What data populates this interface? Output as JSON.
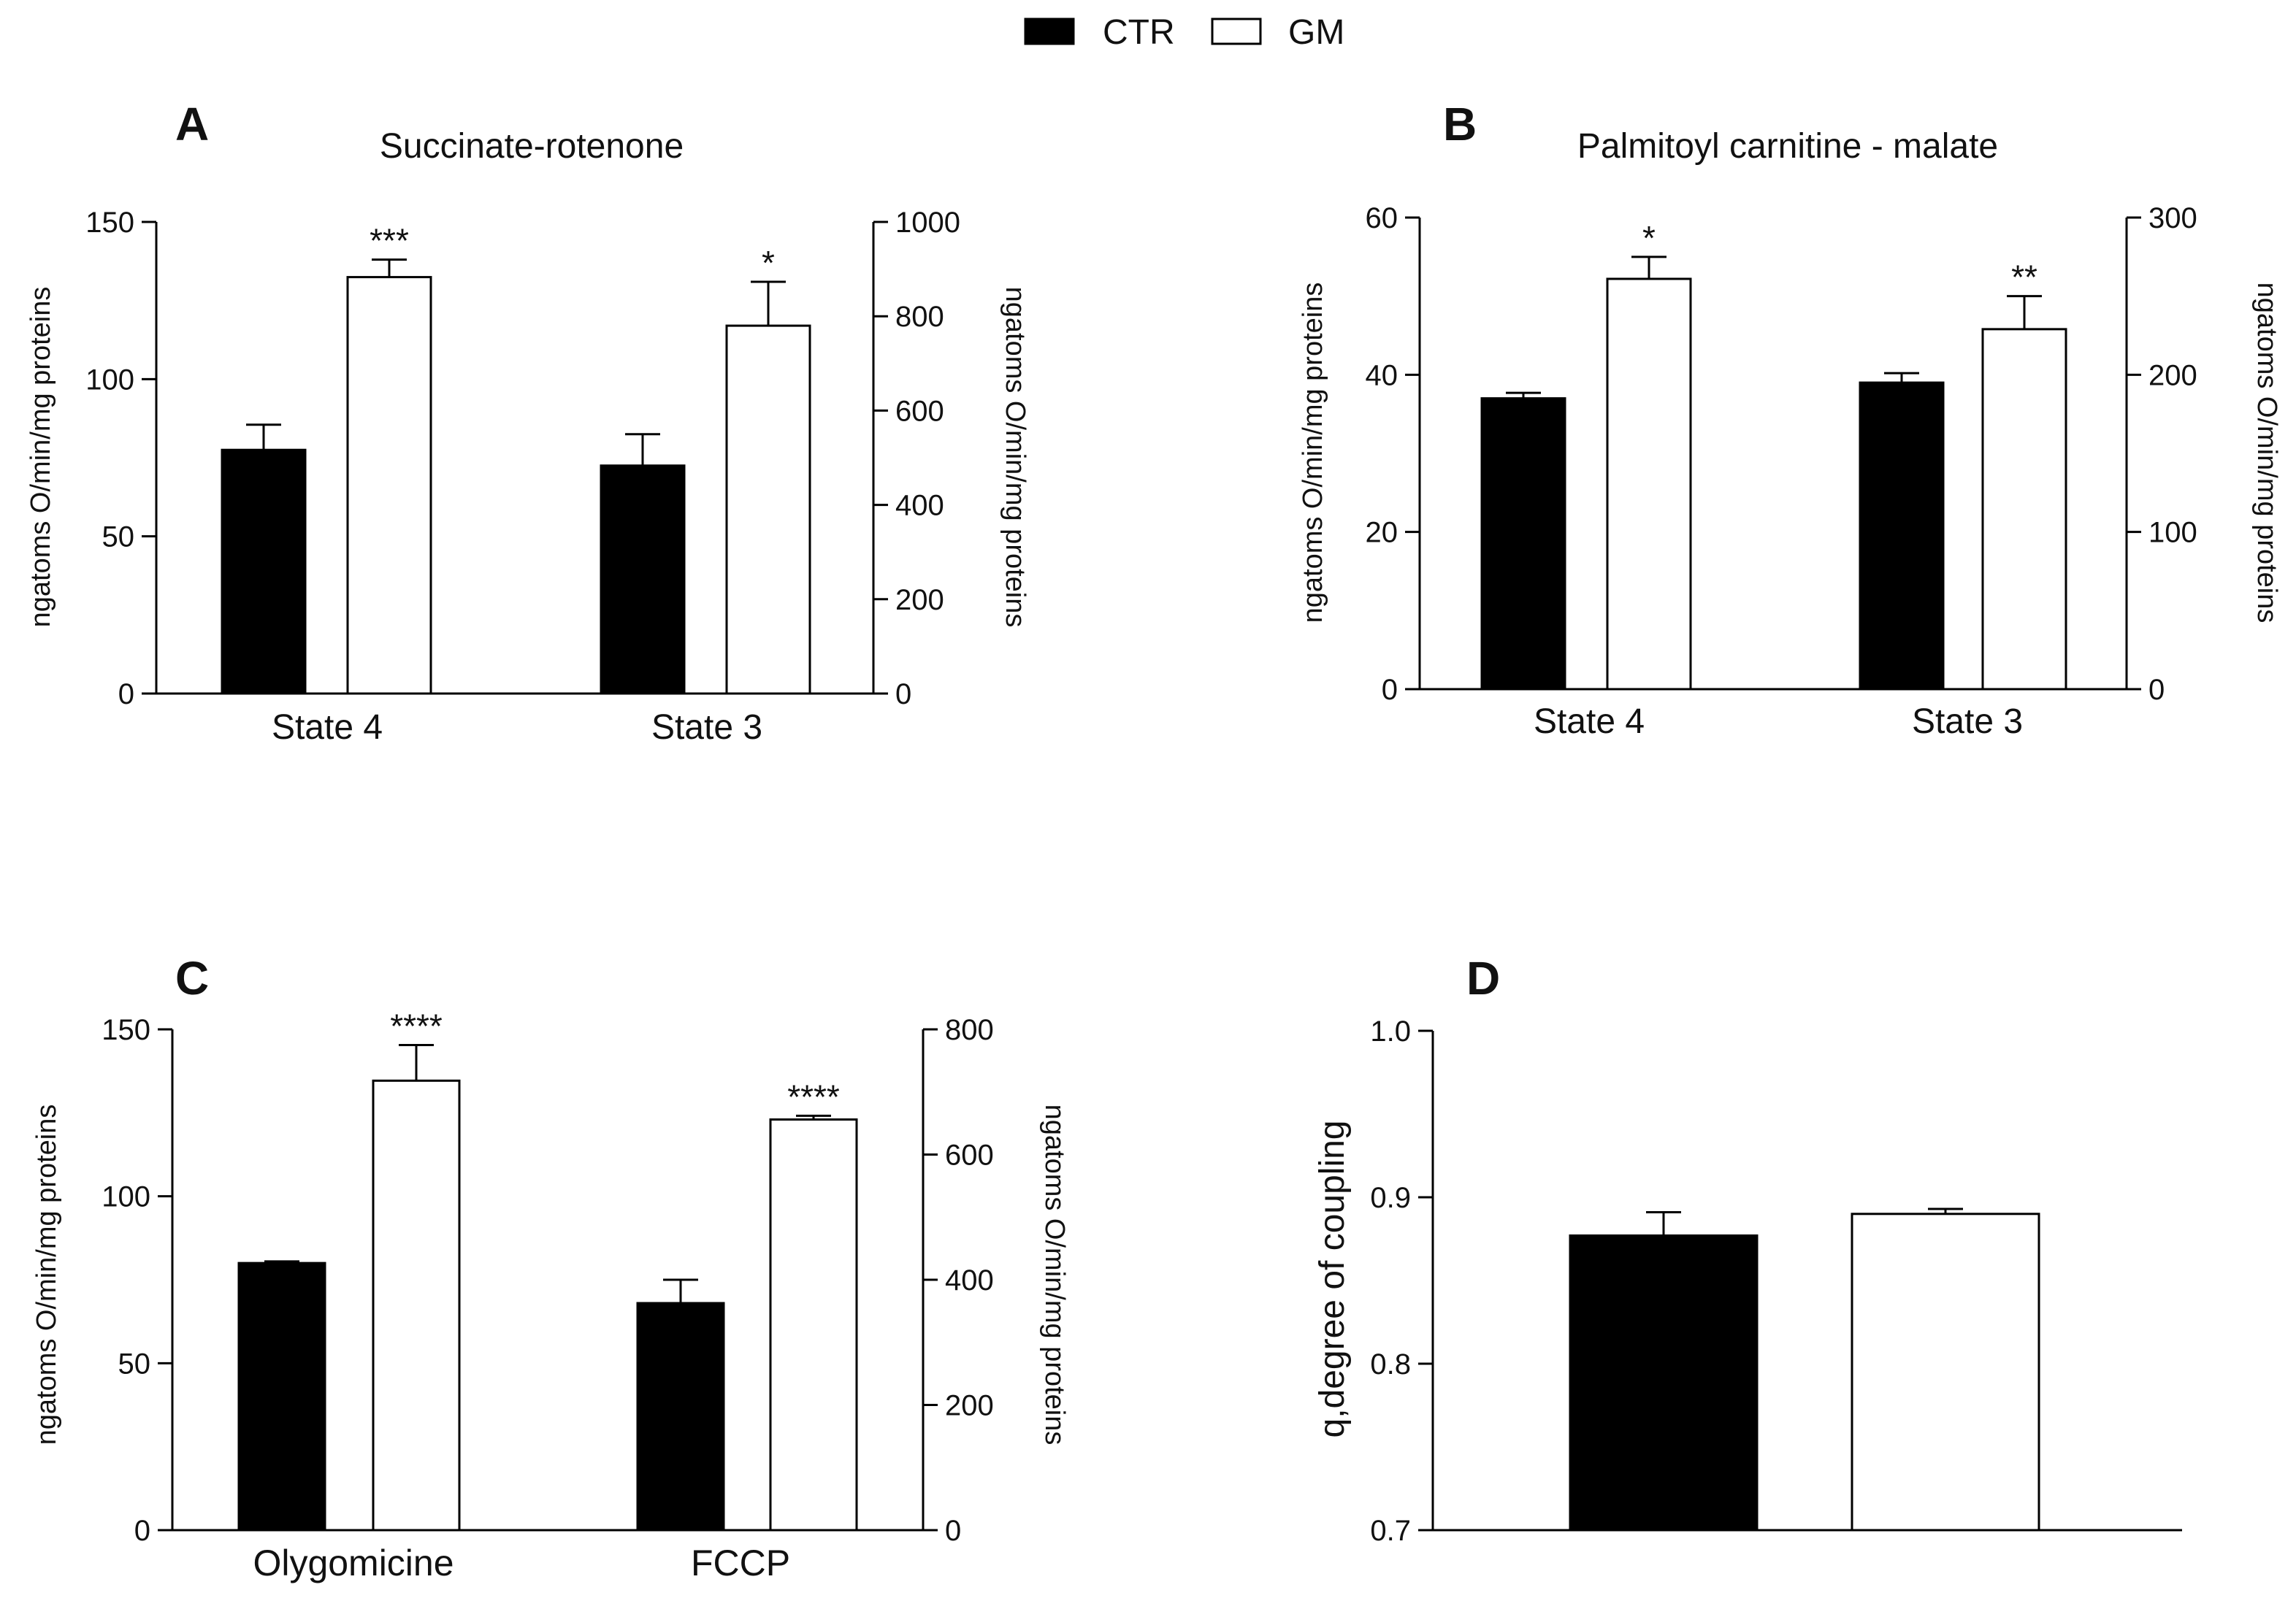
{
  "legend": {
    "entries": [
      {
        "label": "CTR",
        "color": "#000000"
      },
      {
        "label": "GM",
        "color": "#ffffff"
      }
    ]
  },
  "chart_data": [
    {
      "type": "bar",
      "panel": "A",
      "title": "Succinate-rotenone",
      "categories": [
        "State 4",
        "State 3"
      ],
      "ylabel": "ngatoms O/min/mg proteins",
      "y2label": "ngatoms O/min/mg proteins",
      "ylim": [
        0,
        150
      ],
      "yticks": [
        0,
        50,
        100,
        150
      ],
      "y2lim": [
        0,
        1000
      ],
      "y2ticks": [
        0,
        200,
        400,
        600,
        800,
        1000
      ],
      "series": [
        {
          "name": "CTR",
          "axis": "left",
          "values": [
            77.5,
            72.5
          ],
          "errors": [
            8,
            10
          ],
          "signif": [
            "",
            ""
          ]
        },
        {
          "name": "GM",
          "axis": "right",
          "values": [
            883,
            780
          ],
          "errors": [
            37,
            93
          ],
          "signif": [
            "***",
            "*"
          ]
        }
      ]
    },
    {
      "type": "bar",
      "panel": "B",
      "title": "Palmitoyl carnitine - malate",
      "categories": [
        "State 4",
        "State 3"
      ],
      "ylabel": "ngatoms O/min/mg proteins",
      "y2label": "ngatoms O/min/mg proteins",
      "ylim": [
        0,
        60
      ],
      "yticks": [
        0,
        20,
        40,
        60
      ],
      "y2lim": [
        0,
        300
      ],
      "y2ticks": [
        0,
        100,
        200,
        300
      ],
      "series": [
        {
          "name": "CTR",
          "axis": "left",
          "values": [
            37,
            39
          ],
          "errors": [
            0.7,
            1.2
          ],
          "signif": [
            "",
            ""
          ]
        },
        {
          "name": "GM",
          "axis": "right",
          "values": [
            261,
            229
          ],
          "errors": [
            14,
            21
          ],
          "signif": [
            "*",
            "**"
          ]
        }
      ]
    },
    {
      "type": "bar",
      "panel": "C",
      "title": "",
      "categories": [
        "Olygomicine",
        "FCCP"
      ],
      "ylabel": "ngatoms O/min/mg proteins",
      "y2label": "ngatoms O/min/mg proteins",
      "ylim": [
        0,
        150
      ],
      "yticks": [
        0,
        50,
        100,
        150
      ],
      "y2lim": [
        0,
        800
      ],
      "y2ticks": [
        0,
        200,
        400,
        600,
        800
      ],
      "series": [
        {
          "name": "CTR",
          "axis": "left",
          "values": [
            80,
            68
          ],
          "errors": [
            0.5,
            7
          ],
          "signif": [
            "",
            ""
          ]
        },
        {
          "name": "GM",
          "axis": "right",
          "values": [
            718,
            656
          ],
          "errors": [
            57,
            6
          ],
          "signif": [
            "****",
            "****"
          ]
        }
      ]
    },
    {
      "type": "bar",
      "panel": "D",
      "title": "",
      "categories": [
        ""
      ],
      "ylabel": "q,degree of coupling",
      "ylim": [
        0.7,
        1.0
      ],
      "yticks": [
        "0.7",
        "0.8",
        "0.9",
        "1.0"
      ],
      "series": [
        {
          "name": "CTR",
          "axis": "left",
          "values": [
            0.877
          ],
          "errors": [
            0.014
          ],
          "signif": [
            ""
          ]
        },
        {
          "name": "GM",
          "axis": "left",
          "values": [
            0.89
          ],
          "errors": [
            0.003
          ],
          "signif": [
            ""
          ]
        }
      ]
    }
  ]
}
